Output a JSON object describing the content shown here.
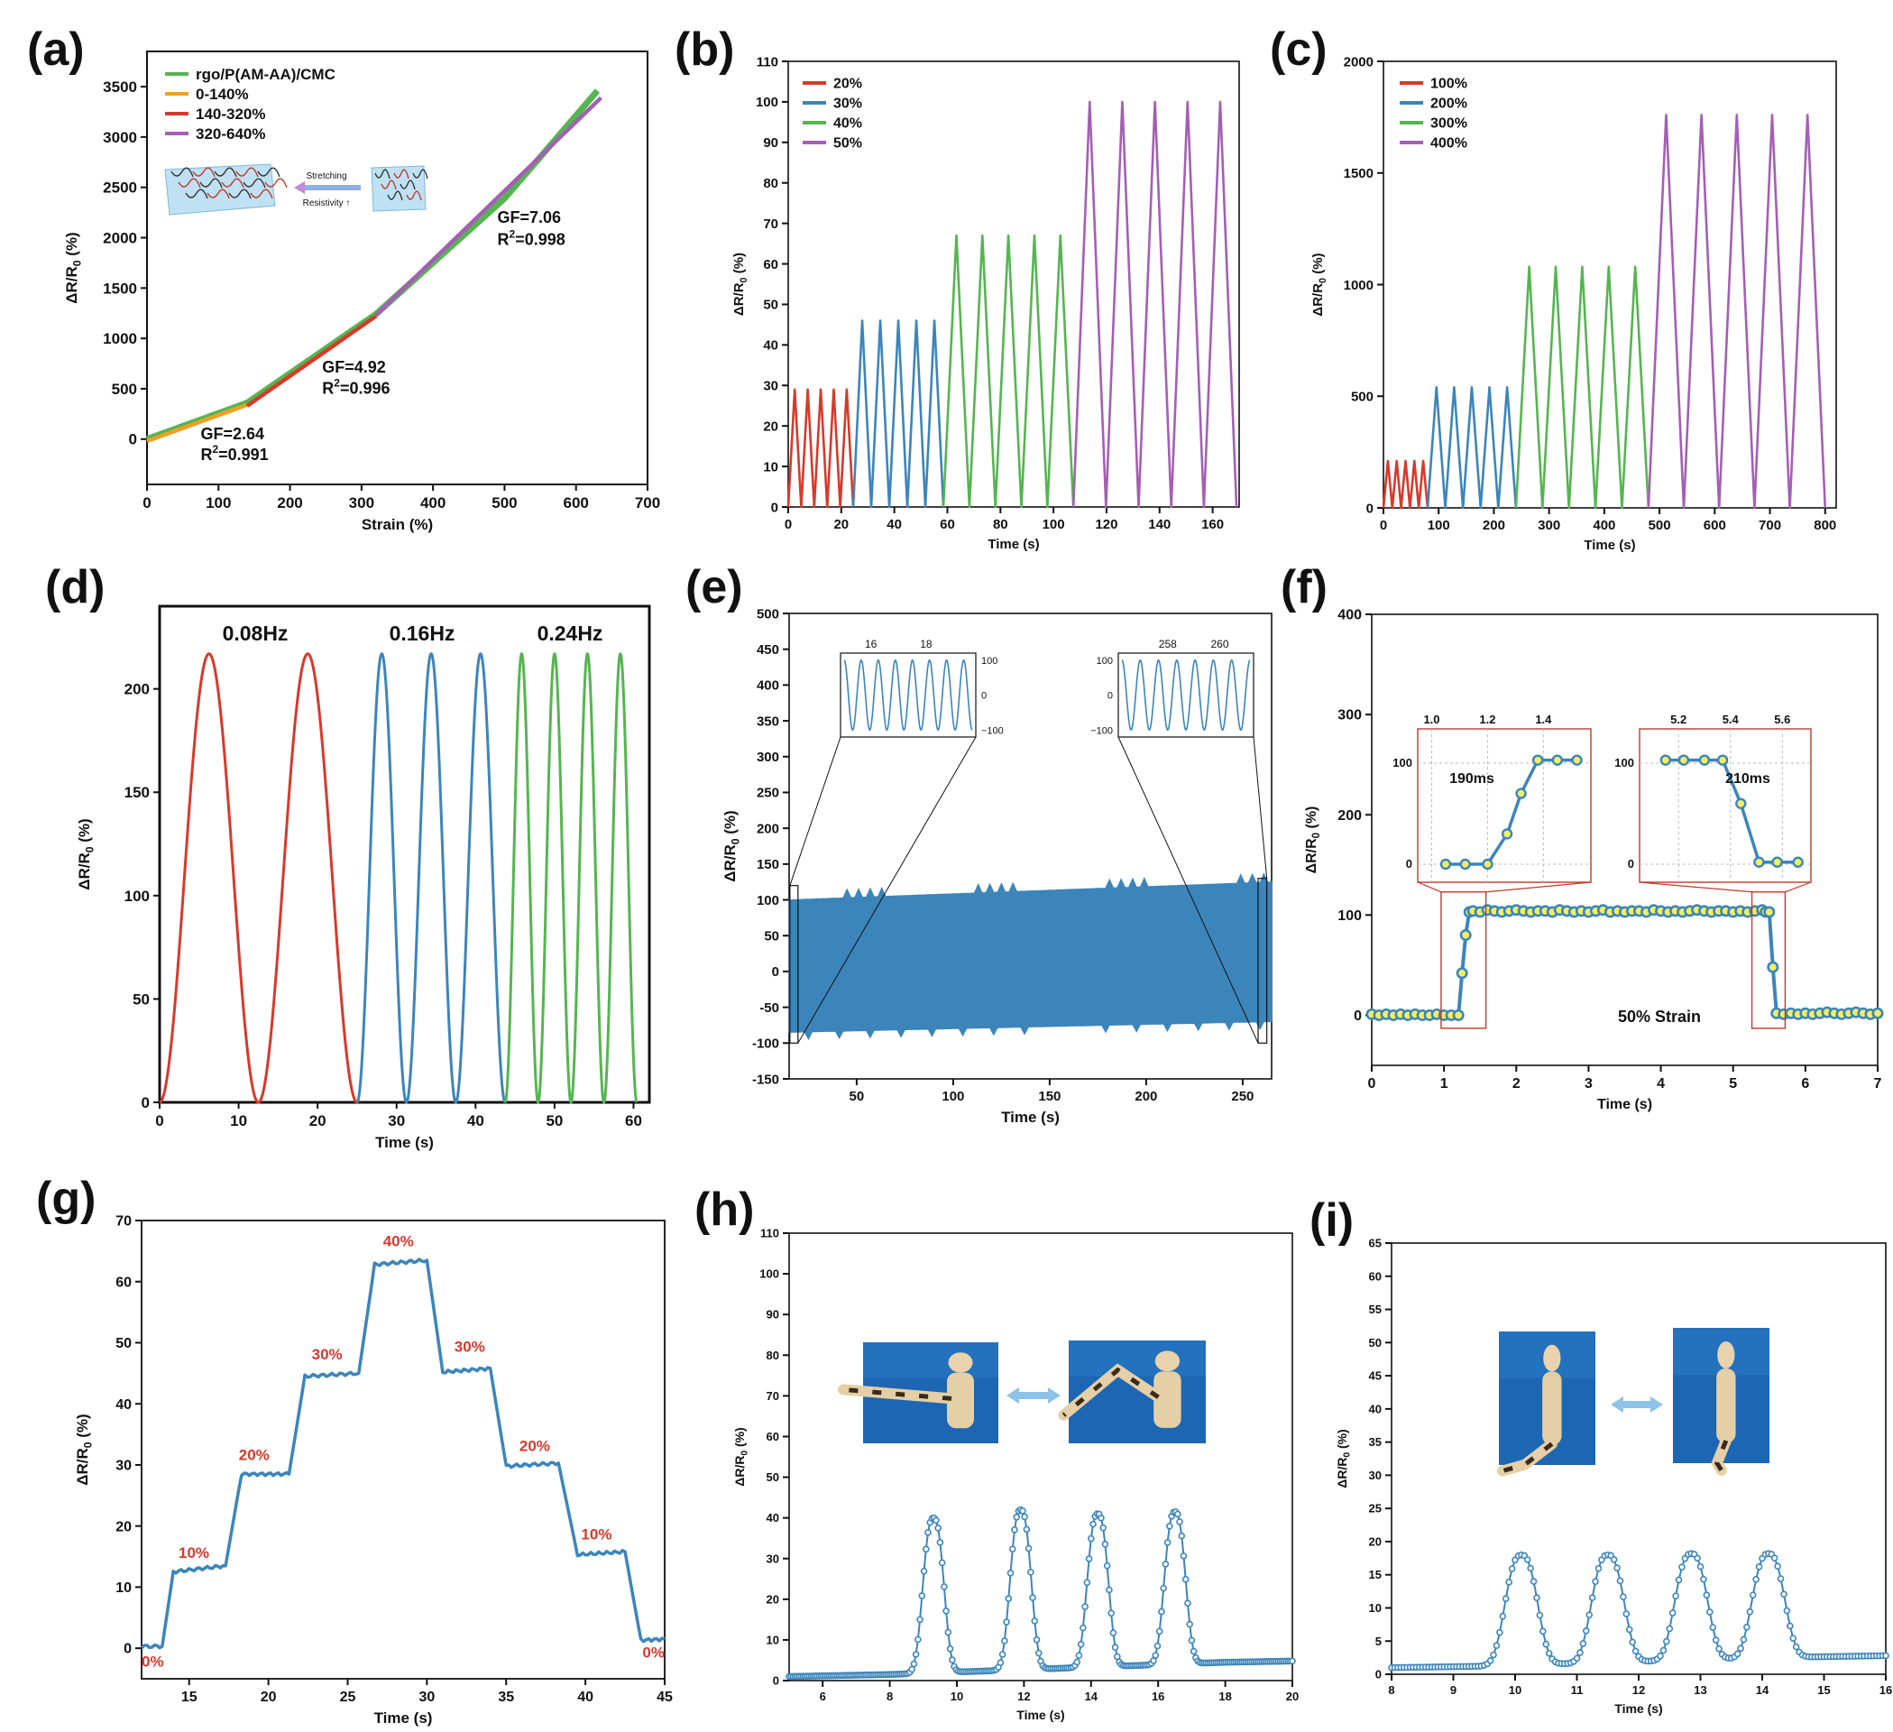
{
  "figure": {
    "panels": [
      "(a)",
      "(b)",
      "(c)",
      "(d)",
      "(e)",
      "(f)",
      "(g)",
      "(h)",
      "(i)"
    ],
    "colors": {
      "red": "#d8392b",
      "blue": "#3c85ba",
      "green": "#55b550",
      "purple": "#a45fb5",
      "orange": "#f0a024",
      "yellow": "#f2ef62"
    },
    "icons": [
      "hydrogel-schematic-icon",
      "mannequin-arm-photo-icon",
      "mannequin-leg-photo-icon",
      "double-arrow-icon"
    ]
  },
  "chart_data": [
    {
      "id": "a",
      "type": "line",
      "xlabel": "Strain (%)",
      "ylabel": "ΔR/R0 (%)",
      "xlim": [
        0,
        700
      ],
      "ylim": [
        -450,
        3850
      ],
      "xticks": [
        0,
        100,
        200,
        300,
        400,
        500,
        600,
        700
      ],
      "yticks": [
        0,
        500,
        1000,
        1500,
        2000,
        2500,
        3000,
        3500
      ],
      "legend": [
        "rgo/P(AM-AA)/CMC",
        "0-140%",
        "140-320%",
        "320-640%"
      ],
      "series": [
        {
          "name": "rgo/P(AM-AA)/CMC",
          "color": "#55b550",
          "x": [
            0,
            140,
            320,
            500,
            630
          ],
          "y": [
            0,
            360,
            1240,
            2390,
            3460
          ]
        },
        {
          "name": "0-140%",
          "color": "#f0a024",
          "x": [
            0,
            140
          ],
          "y": [
            -20,
            340
          ]
        },
        {
          "name": "140-320%",
          "color": "#d8392b",
          "x": [
            140,
            320
          ],
          "y": [
            330,
            1220
          ]
        },
        {
          "name": "320-640%",
          "color": "#a45fb5",
          "x": [
            320,
            635
          ],
          "y": [
            1230,
            3390
          ]
        }
      ],
      "annotations": [
        {
          "text": "GF=2.64",
          "x": 75,
          "y": 0
        },
        {
          "text": "R2=0.991",
          "x": 75,
          "y": -210
        },
        {
          "text": "GF=4.92",
          "x": 245,
          "y": 660
        },
        {
          "text": "R2=0.996",
          "x": 245,
          "y": 450
        },
        {
          "text": "GF=7.06",
          "x": 490,
          "y": 2150
        },
        {
          "text": "R2=0.998",
          "x": 490,
          "y": 1930
        }
      ],
      "inset": {
        "label_top": "Stretching",
        "label_bottom": "Resistivity"
      }
    },
    {
      "id": "b",
      "type": "line",
      "xlabel": "Time (s)",
      "ylabel": "ΔR/R0 (%)",
      "xlim": [
        0,
        170
      ],
      "ylim": [
        0,
        110
      ],
      "xticks": [
        0,
        20,
        40,
        60,
        80,
        100,
        120,
        140,
        160
      ],
      "yticks": [
        0,
        10,
        20,
        30,
        40,
        50,
        60,
        70,
        80,
        90,
        100,
        110
      ],
      "legend": [
        "20%",
        "30%",
        "40%",
        "50%"
      ],
      "series": [
        {
          "name": "20%",
          "color": "#d8392b",
          "start": 0,
          "period": 4.9,
          "cycles": 5,
          "peak": 29
        },
        {
          "name": "30%",
          "color": "#3c85ba",
          "start": 24.5,
          "period": 6.8,
          "cycles": 5,
          "peak": 46
        },
        {
          "name": "40%",
          "color": "#55b550",
          "start": 58.5,
          "period": 9.8,
          "cycles": 5,
          "peak": 67
        },
        {
          "name": "50%",
          "color": "#a45fb5",
          "start": 107.5,
          "period": 12.3,
          "cycles": 5,
          "peak": 100
        }
      ]
    },
    {
      "id": "c",
      "type": "line",
      "xlabel": "Time (s)",
      "ylabel": "ΔR/R0 (%)",
      "xlim": [
        0,
        820
      ],
      "ylim": [
        0,
        2000
      ],
      "xticks": [
        0,
        100,
        200,
        300,
        400,
        500,
        600,
        700,
        800
      ],
      "yticks": [
        0,
        500,
        1000,
        1500,
        2000
      ],
      "legend": [
        "100%",
        "200%",
        "300%",
        "400%"
      ],
      "series": [
        {
          "name": "100%",
          "color": "#d8392b",
          "start": 0,
          "period": 16,
          "cycles": 5,
          "peak": 210
        },
        {
          "name": "200%",
          "color": "#3c85ba",
          "start": 80,
          "period": 32,
          "cycles": 5,
          "peak": 540
        },
        {
          "name": "300%",
          "color": "#55b550",
          "start": 240,
          "period": 48,
          "cycles": 5,
          "peak": 1080
        },
        {
          "name": "400%",
          "color": "#a45fb5",
          "start": 480,
          "period": 64,
          "cycles": 5,
          "peak": 1760
        }
      ]
    },
    {
      "id": "d",
      "type": "line",
      "xlabel": "Time (s)",
      "ylabel": "ΔR/R0 (%)",
      "xlim": [
        0,
        62
      ],
      "ylim": [
        0,
        240
      ],
      "xticks": [
        0,
        10,
        20,
        30,
        40,
        50,
        60
      ],
      "yticks": [
        0,
        50,
        100,
        150,
        200
      ],
      "frequency_labels": [
        "0.08Hz",
        "0.16Hz",
        "0.24Hz"
      ],
      "series": [
        {
          "name": "0.08Hz",
          "color": "#d8392b",
          "start": 0,
          "end": 25,
          "frequency": 0.08,
          "peak": 217
        },
        {
          "name": "0.16Hz",
          "color": "#3c85ba",
          "start": 25,
          "end": 43.75,
          "frequency": 0.16,
          "peak": 217
        },
        {
          "name": "0.24Hz",
          "color": "#55b550",
          "start": 43.75,
          "end": 60.4,
          "frequency": 0.24,
          "peak": 217
        }
      ]
    },
    {
      "id": "e",
      "type": "area",
      "xlabel": "Time (s)",
      "ylabel": "ΔR/R0 (%)",
      "xlim": [
        15,
        265
      ],
      "ylim": [
        -150,
        500
      ],
      "xticks": [
        50,
        100,
        150,
        200,
        250
      ],
      "yticks": [
        -150,
        -100,
        -50,
        0,
        50,
        100,
        150,
        200,
        250,
        300,
        350,
        400,
        450,
        500
      ],
      "color": "#3c85ba",
      "envelope": {
        "x": [
          15,
          265
        ],
        "upper": [
          100,
          125
        ],
        "lower": [
          -85,
          -70
        ]
      },
      "insets": [
        {
          "xticks": [
            16,
            18
          ],
          "yticks": [
            -100,
            0,
            100
          ],
          "xlim": [
            14.9,
            19.8
          ],
          "cycles": 7.5
        },
        {
          "xticks": [
            258,
            260
          ],
          "yticks": [
            -100,
            0,
            100
          ],
          "xlim": [
            256.1,
            261.3
          ],
          "cycles": 7
        }
      ]
    },
    {
      "id": "f",
      "type": "scatter",
      "xlabel": "Time (s)",
      "ylabel": "ΔR/R0 (%)",
      "xlim": [
        0,
        7
      ],
      "ylim": [
        -50,
        400
      ],
      "xticks": [
        0,
        1,
        2,
        3,
        4,
        5,
        6,
        7
      ],
      "yticks": [
        0,
        100,
        200,
        300,
        400
      ],
      "annotation": "50% Strain",
      "series": [
        {
          "name": "response",
          "color": "#3c85ba",
          "marker_fill": "#f2ef62",
          "x": [
            0,
            0.1,
            0.2,
            0.3,
            0.4,
            0.5,
            0.6,
            0.7,
            0.8,
            0.9,
            1.0,
            1.1,
            1.2,
            1.25,
            1.3,
            1.35,
            1.4,
            1.5,
            1.6,
            1.7,
            1.8,
            1.9,
            2.0,
            2.1,
            2.2,
            2.3,
            2.4,
            2.5,
            2.6,
            2.7,
            2.8,
            2.9,
            3.0,
            3.1,
            3.2,
            3.3,
            3.4,
            3.5,
            3.6,
            3.7,
            3.8,
            3.9,
            4.0,
            4.1,
            4.2,
            4.3,
            4.4,
            4.5,
            4.6,
            4.7,
            4.8,
            4.9,
            5.0,
            5.1,
            5.2,
            5.3,
            5.4,
            5.45,
            5.5,
            5.55,
            5.6,
            5.7,
            5.8,
            5.9,
            6.0,
            6.1,
            6.2,
            6.3,
            6.4,
            6.5,
            6.6,
            6.7,
            6.8,
            6.9,
            7.0
          ],
          "y": [
            1,
            0,
            1,
            0,
            1,
            0,
            1,
            0,
            0,
            1,
            0,
            0,
            0,
            42,
            80,
            103,
            104,
            103,
            105,
            104,
            103,
            104,
            105,
            104,
            103,
            104,
            104,
            103,
            105,
            104,
            103,
            104,
            103,
            104,
            105,
            103,
            104,
            103,
            104,
            104,
            103,
            105,
            104,
            103,
            104,
            103,
            104,
            105,
            104,
            103,
            104,
            104,
            103,
            104,
            103,
            104,
            105,
            103,
            103,
            48,
            2,
            1,
            2,
            1,
            2,
            1,
            2,
            3,
            2,
            1,
            2,
            3,
            2,
            1,
            2
          ]
        }
      ],
      "insets": [
        {
          "label": "190ms",
          "xticks": [
            1.0,
            1.2,
            1.4
          ],
          "yticks": [
            0,
            100
          ],
          "x": [
            1.05,
            1.12,
            1.2,
            1.27,
            1.32,
            1.38,
            1.45,
            1.52
          ],
          "y": [
            0,
            0,
            0,
            30,
            70,
            103,
            103,
            103
          ]
        },
        {
          "label": "210ms",
          "xticks": [
            5.2,
            5.4,
            5.6
          ],
          "yticks": [
            0,
            100
          ],
          "x": [
            5.15,
            5.22,
            5.3,
            5.37,
            5.44,
            5.51,
            5.58,
            5.66
          ],
          "y": [
            103,
            103,
            103,
            103,
            60,
            2,
            2,
            2
          ]
        }
      ]
    },
    {
      "id": "g",
      "type": "line",
      "xlabel": "Time (s)",
      "ylabel": "ΔR/R0 (%)",
      "xlim": [
        12,
        45
      ],
      "ylim": [
        -5,
        70
      ],
      "xticks": [
        15,
        20,
        25,
        30,
        35,
        40,
        45
      ],
      "yticks": [
        0,
        10,
        20,
        30,
        40,
        50,
        60,
        70
      ],
      "color": "#3c85ba",
      "series": [
        {
          "name": "steps",
          "x": [
            12,
            13.3,
            14,
            17.3,
            18.3,
            21.3,
            22.3,
            25.7,
            26.7,
            30,
            31,
            34,
            35,
            38.3,
            39.5,
            42.5,
            43.5,
            45
          ],
          "y": [
            0.3,
            0.3,
            12.5,
            13.5,
            28.5,
            28.5,
            44.5,
            45,
            62.8,
            63.5,
            45.2,
            45.8,
            29.8,
            30.3,
            15.3,
            15.8,
            1.3,
            1.5
          ]
        }
      ],
      "labels": [
        {
          "text": "0%",
          "x": 12.7,
          "y": -3
        },
        {
          "text": "10%",
          "x": 15.3,
          "y": 14.8
        },
        {
          "text": "20%",
          "x": 19.1,
          "y": 30.8
        },
        {
          "text": "30%",
          "x": 23.7,
          "y": 47.3
        },
        {
          "text": "40%",
          "x": 28.2,
          "y": 65.8
        },
        {
          "text": "30%",
          "x": 32.7,
          "y": 48.5
        },
        {
          "text": "20%",
          "x": 36.8,
          "y": 32.3
        },
        {
          "text": "10%",
          "x": 40.7,
          "y": 17.8
        },
        {
          "text": "0%",
          "x": 44.3,
          "y": -1.5
        }
      ]
    },
    {
      "id": "h",
      "type": "line",
      "xlabel": "Time (s)",
      "ylabel": "ΔR/R0 (%)",
      "xlim": [
        5,
        20
      ],
      "ylim": [
        0,
        110
      ],
      "xticks": [
        6,
        8,
        10,
        12,
        14,
        16,
        18,
        20
      ],
      "yticks": [
        0,
        10,
        20,
        30,
        40,
        50,
        60,
        70,
        80,
        90,
        100,
        110
      ],
      "color": "#3c85ba",
      "peaks": [
        {
          "t": 9.3,
          "h": 40
        },
        {
          "t": 11.9,
          "h": 42
        },
        {
          "t": 14.2,
          "h": 41
        },
        {
          "t": 16.5,
          "h": 41.5
        }
      ],
      "baseline": {
        "x": [
          5,
          8,
          18,
          20
        ],
        "y": [
          1,
          1.5,
          4.5,
          4.8
        ]
      }
    },
    {
      "id": "i",
      "type": "line",
      "xlabel": "Time (s)",
      "ylabel": "ΔR/R0 (%)",
      "xlim": [
        8,
        16
      ],
      "ylim": [
        0,
        65
      ],
      "xticks": [
        8,
        9,
        10,
        11,
        12,
        13,
        14,
        15,
        16
      ],
      "yticks": [
        0,
        5,
        10,
        15,
        20,
        25,
        30,
        35,
        40,
        45,
        50,
        55,
        60,
        65
      ],
      "color": "#3c85ba",
      "peaks": [
        {
          "t": 10.1,
          "h": 18
        },
        {
          "t": 11.5,
          "h": 18
        },
        {
          "t": 12.85,
          "h": 18.2
        },
        {
          "t": 14.1,
          "h": 18.2
        }
      ],
      "baseline": {
        "x": [
          8,
          9.4,
          14.7,
          16
        ],
        "y": [
          1,
          1.2,
          2.6,
          2.8
        ]
      }
    }
  ]
}
